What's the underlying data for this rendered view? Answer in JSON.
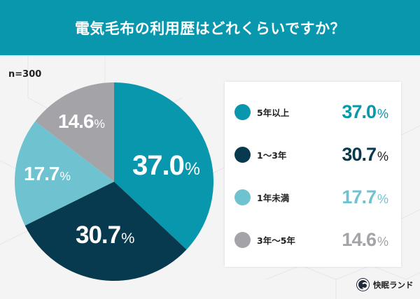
{
  "header": {
    "title": "電気毛布の利用歴はどれくらいですか？",
    "background_color": "#0897ad"
  },
  "sample_size": "n=300",
  "legend": {
    "items": [
      {
        "label": "5年以上",
        "value": "37.0",
        "unit": "%",
        "color": "#0897ad"
      },
      {
        "label": "1〜3年",
        "value": "30.7",
        "unit": "%",
        "color": "#083a4f"
      },
      {
        "label": "1年未満",
        "value": "17.7",
        "unit": "%",
        "color": "#6fc3d0"
      },
      {
        "label": "3年〜5年",
        "value": "14.6",
        "unit": "%",
        "color": "#a3a3a8"
      }
    ]
  },
  "pie_labels": [
    {
      "value": "37.0",
      "unit": "%"
    },
    {
      "value": "30.7",
      "unit": "%"
    },
    {
      "value": "17.7",
      "unit": "%"
    },
    {
      "value": "14.6",
      "unit": "%"
    }
  ],
  "brand": {
    "name": "快眠ランド",
    "icon": "brand-logo-icon"
  },
  "chart_data": {
    "type": "pie",
    "title": "電気毛布の利用歴はどれくらいですか？",
    "subtitle": "n=300",
    "categories": [
      "5年以上",
      "1〜3年",
      "1年未満",
      "3年〜5年"
    ],
    "values": [
      37.0,
      30.7,
      17.7,
      14.6
    ],
    "unit": "%",
    "colors": [
      "#0897ad",
      "#083a4f",
      "#6fc3d0",
      "#a3a3a8"
    ],
    "start_angle": "12 o'clock",
    "direction": "clockwise",
    "legend_position": "right",
    "data_labels": true
  }
}
